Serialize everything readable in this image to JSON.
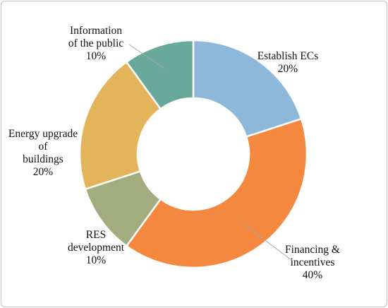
{
  "chart_data": {
    "type": "pie",
    "subtype": "donut",
    "slices": [
      {
        "label_lines": [
          "Establish ECs"
        ],
        "value": 20,
        "value_label": "20%",
        "color": "#8db8d9"
      },
      {
        "label_lines": [
          "Financing &",
          "incentives"
        ],
        "value": 40,
        "value_label": "40%",
        "color": "#f5883f"
      },
      {
        "label_lines": [
          "RES",
          "development"
        ],
        "value": 10,
        "value_label": "10%",
        "color": "#a3ac7f"
      },
      {
        "label_lines": [
          "Energy upgrade",
          "of",
          "buildings"
        ],
        "value": 20,
        "value_label": "20%",
        "color": "#e4b45a"
      },
      {
        "label_lines": [
          "Information",
          "of the public"
        ],
        "value": 10,
        "value_label": "10%",
        "color": "#69a99c"
      }
    ]
  }
}
